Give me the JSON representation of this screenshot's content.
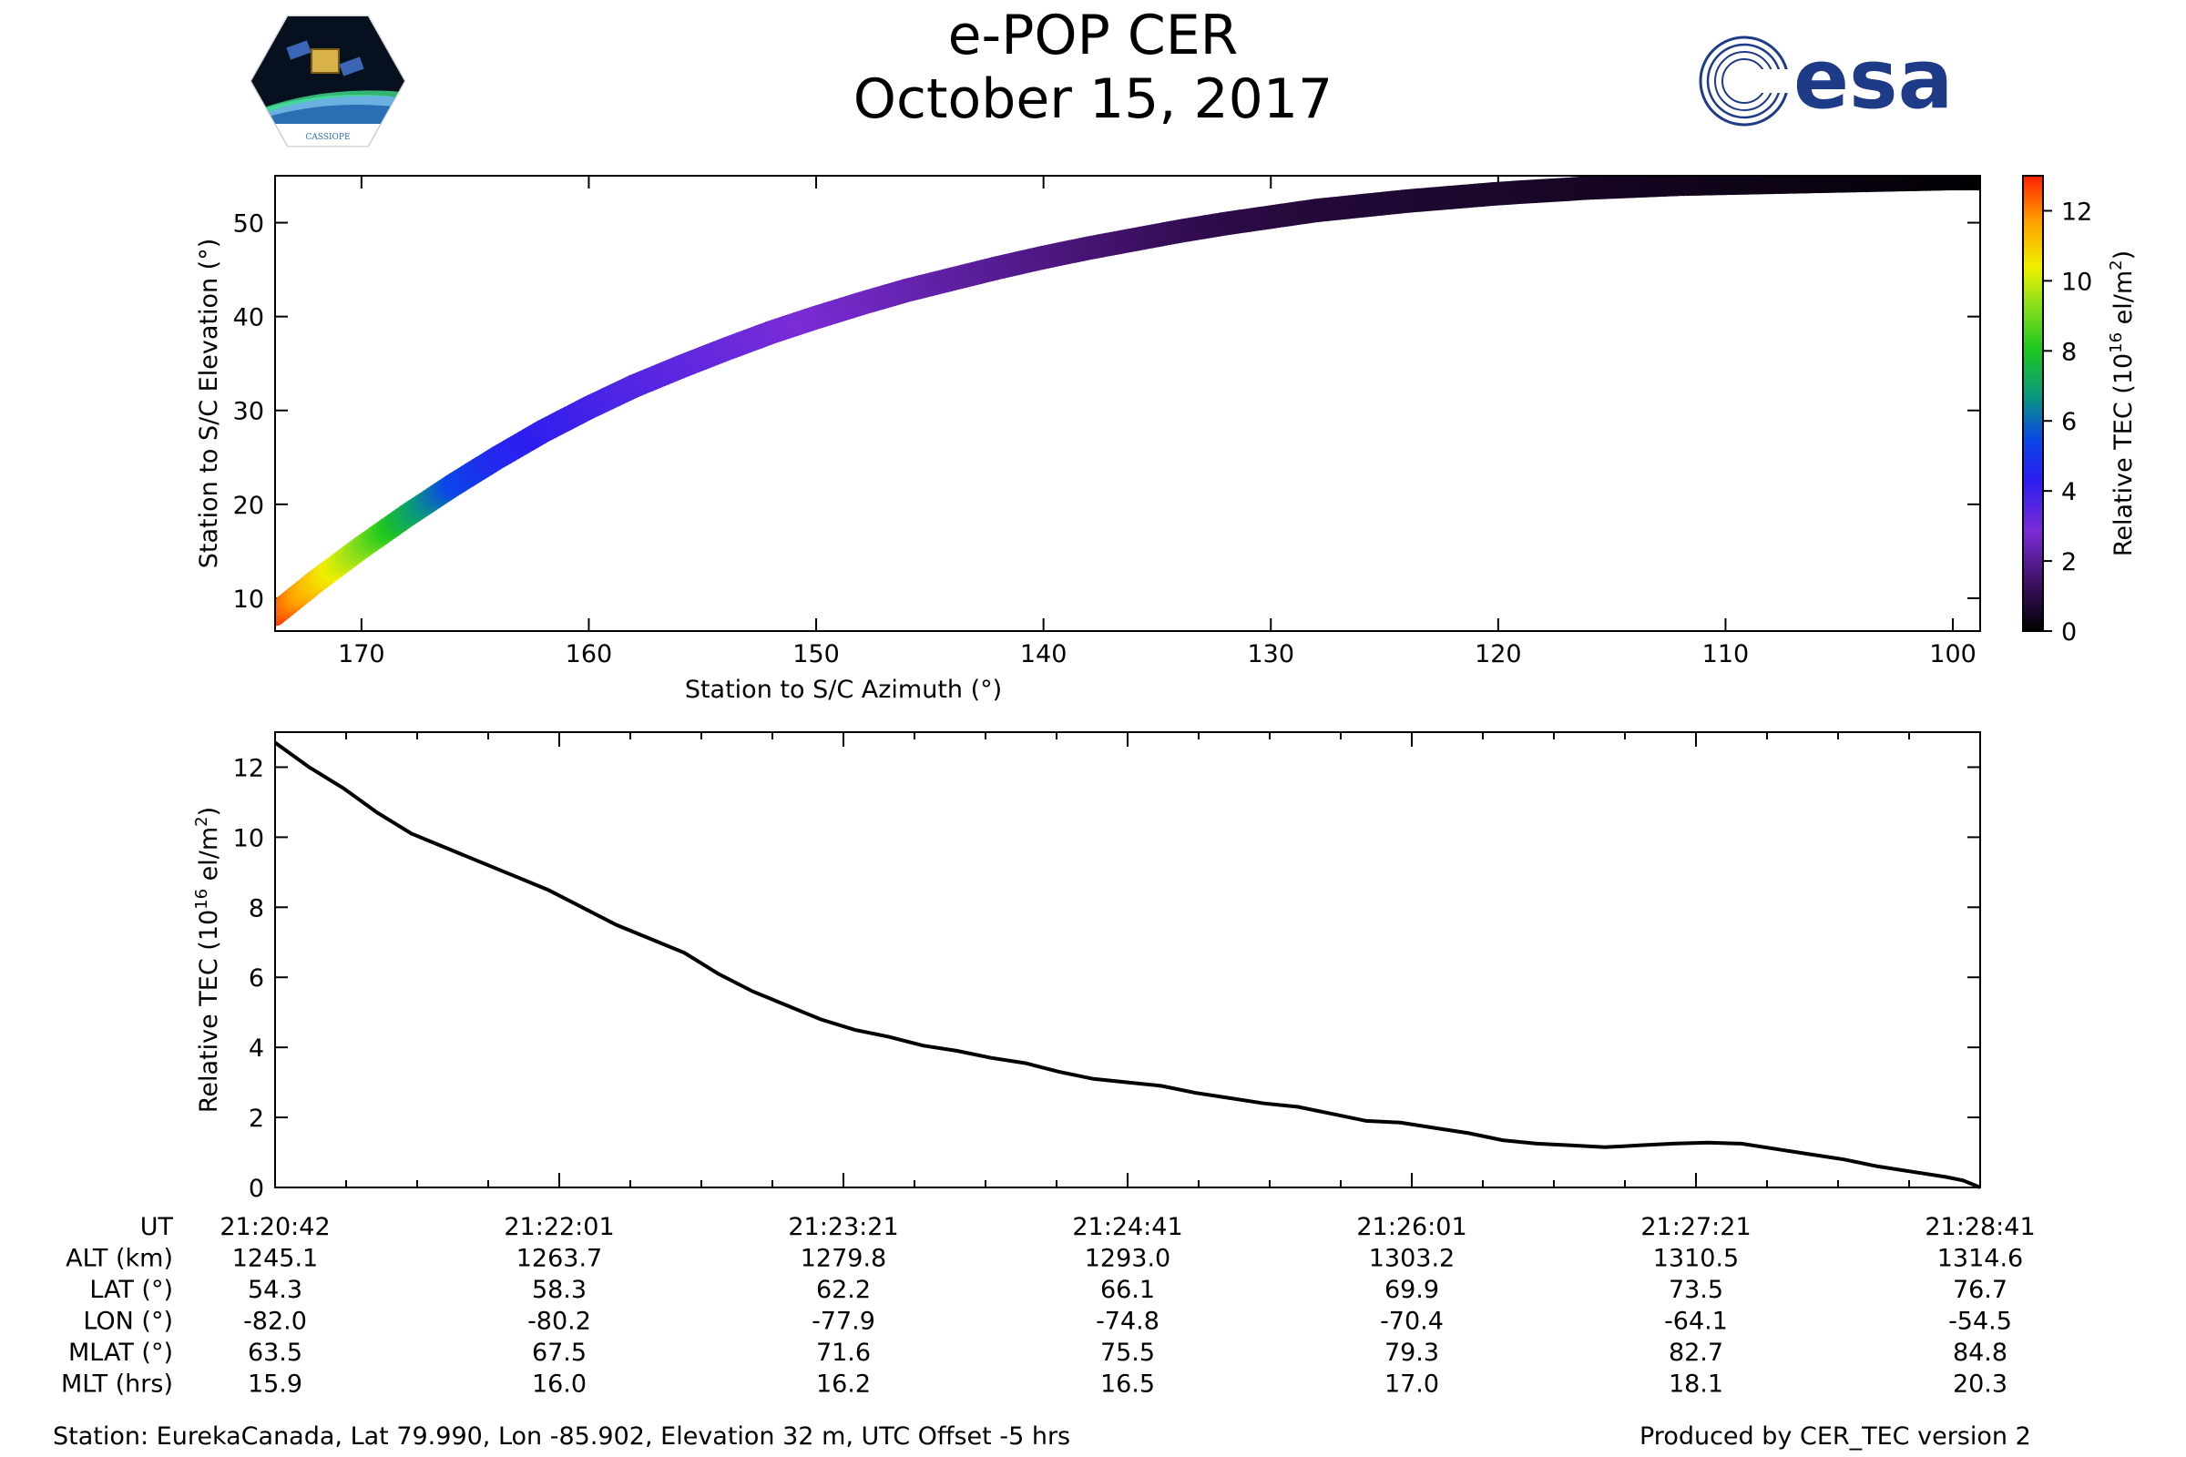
{
  "header": {
    "title": "e-POP CER",
    "date": "October 15, 2017",
    "left_logo_text": "CASSIOPE",
    "right_logo_text": "esa"
  },
  "colors": {
    "line": "#000000",
    "esa_blue": "#1d3b87"
  },
  "chart_data": [
    {
      "type": "scatter",
      "title": "",
      "xlabel": "Station to S/C Azimuth (°)",
      "ylabel": "Station to S/C Elevation (°)",
      "xlim": [
        173.8,
        98.8
      ],
      "ylim": [
        6.5,
        55
      ],
      "xticks": [
        170,
        160,
        150,
        140,
        130,
        120,
        110,
        100
      ],
      "yticks": [
        10,
        20,
        30,
        40,
        50
      ],
      "x": [
        173.8,
        172,
        170,
        168,
        166,
        164,
        162,
        160,
        158,
        156,
        154,
        152,
        150,
        148,
        146,
        144,
        142,
        140,
        138,
        136,
        134,
        132,
        130,
        128,
        126,
        124,
        122,
        120,
        118,
        116,
        114,
        112,
        110,
        108,
        106,
        104,
        102,
        100,
        98.8
      ],
      "y": [
        8.3,
        11.8,
        15.4,
        18.8,
        22.0,
        25.0,
        27.8,
        30.3,
        32.6,
        34.6,
        36.5,
        38.3,
        39.9,
        41.4,
        42.8,
        44.0,
        45.2,
        46.3,
        47.3,
        48.2,
        49.1,
        49.9,
        50.6,
        51.3,
        51.8,
        52.3,
        52.7,
        53.1,
        53.4,
        53.7,
        53.9,
        54.1,
        54.2,
        54.3,
        54.4,
        54.5,
        54.6,
        54.7,
        54.7
      ],
      "tec": [
        12.7,
        11.0,
        9.3,
        7.3,
        5.5,
        4.6,
        4.2,
        3.9,
        3.6,
        3.4,
        3.2,
        3.0,
        2.8,
        2.6,
        2.4,
        2.2,
        2.0,
        1.8,
        1.6,
        1.4,
        1.2,
        1.0,
        0.9,
        0.8,
        0.75,
        0.7,
        0.65,
        0.6,
        0.55,
        0.5,
        0.45,
        0.4,
        0.35,
        0.3,
        0.25,
        0.2,
        0.15,
        0.1,
        0.05
      ],
      "colorbar": {
        "label": "Relative TEC (10¹⁶ el/m²)",
        "label_base": "Relative TEC (10",
        "label_exp": "16",
        "label_unit": " el/m",
        "label_unit_exp": "2",
        "label_close": ")",
        "range": [
          0,
          13
        ],
        "ticks": [
          0,
          2,
          4,
          6,
          8,
          10,
          12
        ]
      }
    },
    {
      "type": "line",
      "title": "",
      "xlabel": "",
      "ylabel": "Relative TEC (10¹⁶ el/m²)",
      "ylabel_base": "Relative TEC (10",
      "ylabel_exp": "16",
      "ylabel_unit": " el/m",
      "ylabel_unit_exp": "2",
      "ylabel_close": ")",
      "ylim": [
        0,
        13
      ],
      "yticks": [
        0,
        2,
        4,
        6,
        8,
        10,
        12
      ],
      "x_frac": [
        0,
        0.02,
        0.04,
        0.06,
        0.08,
        0.1,
        0.12,
        0.14,
        0.16,
        0.18,
        0.2,
        0.22,
        0.24,
        0.26,
        0.28,
        0.3,
        0.32,
        0.34,
        0.36,
        0.38,
        0.4,
        0.42,
        0.44,
        0.46,
        0.48,
        0.5,
        0.52,
        0.54,
        0.56,
        0.58,
        0.6,
        0.62,
        0.64,
        0.66,
        0.68,
        0.7,
        0.72,
        0.74,
        0.76,
        0.78,
        0.8,
        0.82,
        0.84,
        0.86,
        0.88,
        0.9,
        0.92,
        0.94,
        0.96,
        0.98,
        0.99,
        1.0
      ],
      "values": [
        12.7,
        12.0,
        11.4,
        10.7,
        10.1,
        9.7,
        9.3,
        8.9,
        8.5,
        8.0,
        7.5,
        7.1,
        6.7,
        6.1,
        5.6,
        5.2,
        4.8,
        4.5,
        4.3,
        4.05,
        3.9,
        3.7,
        3.55,
        3.3,
        3.1,
        3.0,
        2.9,
        2.7,
        2.55,
        2.4,
        2.3,
        2.1,
        1.9,
        1.85,
        1.7,
        1.55,
        1.35,
        1.25,
        1.2,
        1.15,
        1.2,
        1.25,
        1.28,
        1.25,
        1.1,
        0.95,
        0.8,
        0.6,
        0.45,
        0.3,
        0.2,
        0.0
      ],
      "x_ticks": [
        {
          "UT": "21:20:42",
          "ALT": "1245.1",
          "LAT": "54.3",
          "LON": "-82.0",
          "MLAT": "63.5",
          "MLT": "15.9"
        },
        {
          "UT": "21:22:01",
          "ALT": "1263.7",
          "LAT": "58.3",
          "LON": "-80.2",
          "MLAT": "67.5",
          "MLT": "16.0"
        },
        {
          "UT": "21:23:21",
          "ALT": "1279.8",
          "LAT": "62.2",
          "LON": "-77.9",
          "MLAT": "71.6",
          "MLT": "16.2"
        },
        {
          "UT": "21:24:41",
          "ALT": "1293.0",
          "LAT": "66.1",
          "LON": "-74.8",
          "MLAT": "75.5",
          "MLT": "16.5"
        },
        {
          "UT": "21:26:01",
          "ALT": "1303.2",
          "LAT": "69.9",
          "LON": "-70.4",
          "MLAT": "79.3",
          "MLT": "17.0"
        },
        {
          "UT": "21:27:21",
          "ALT": "1310.5",
          "LAT": "73.5",
          "LON": "-64.1",
          "MLAT": "82.7",
          "MLT": "18.1"
        },
        {
          "UT": "21:28:41",
          "ALT": "1314.6",
          "LAT": "76.7",
          "LON": "-54.5",
          "MLAT": "84.8",
          "MLT": "20.3"
        }
      ],
      "row_labels": [
        {
          "key": "UT",
          "label": "UT"
        },
        {
          "key": "ALT",
          "label": "ALT (km)"
        },
        {
          "key": "LAT",
          "label": "LAT (°)"
        },
        {
          "key": "LON",
          "label": "LON (°)"
        },
        {
          "key": "MLAT",
          "label": "MLAT (°)"
        },
        {
          "key": "MLT",
          "label": "MLT (hrs)"
        }
      ]
    }
  ],
  "footer": {
    "station": "Station: EurekaCanada, Lat 79.990, Lon -85.902, Elevation 32 m, UTC Offset -5 hrs",
    "produced": "Produced by CER_TEC version 2"
  }
}
